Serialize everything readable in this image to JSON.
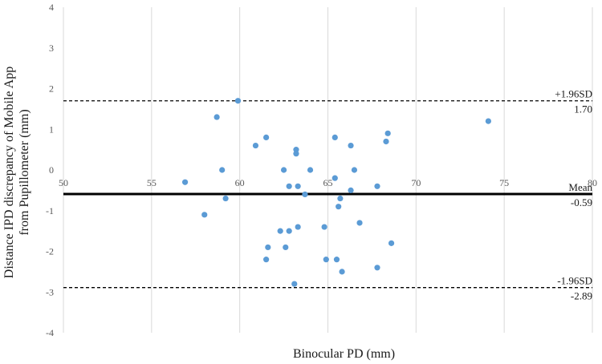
{
  "chart_data": {
    "type": "scatter",
    "title": "",
    "xlabel": "Binocular PD (mm)",
    "ylabel_lines": [
      "Distance IPD discrepancy  of Mobile App",
      "from Pupillometer (mm)"
    ],
    "xlim": [
      50,
      80
    ],
    "ylim": [
      -4,
      4
    ],
    "x_ticks": [
      50,
      55,
      60,
      65,
      70,
      75,
      80
    ],
    "y_ticks": [
      4,
      3,
      2,
      1,
      0,
      -1,
      -2,
      -3,
      -4
    ],
    "grid": "vertical",
    "point_color": "#5b9bd5",
    "series": [
      {
        "name": "Difference",
        "points": [
          {
            "x": 59.9,
            "y": 1.7
          },
          {
            "x": 58.7,
            "y": 1.3
          },
          {
            "x": 74.1,
            "y": 1.2
          },
          {
            "x": 68.4,
            "y": 0.9
          },
          {
            "x": 61.5,
            "y": 0.8
          },
          {
            "x": 65.4,
            "y": 0.8
          },
          {
            "x": 60.9,
            "y": 0.6
          },
          {
            "x": 66.3,
            "y": 0.6
          },
          {
            "x": 68.3,
            "y": 0.7
          },
          {
            "x": 63.2,
            "y": 0.5
          },
          {
            "x": 63.2,
            "y": 0.4
          },
          {
            "x": 59.0,
            "y": 0.0
          },
          {
            "x": 62.5,
            "y": 0.0
          },
          {
            "x": 64.0,
            "y": 0.0
          },
          {
            "x": 66.5,
            "y": 0.0
          },
          {
            "x": 65.4,
            "y": -0.2
          },
          {
            "x": 56.9,
            "y": -0.3
          },
          {
            "x": 62.8,
            "y": -0.4
          },
          {
            "x": 63.3,
            "y": -0.4
          },
          {
            "x": 67.8,
            "y": -0.4
          },
          {
            "x": 66.3,
            "y": -0.5
          },
          {
            "x": 63.7,
            "y": -0.6
          },
          {
            "x": 59.2,
            "y": -0.7
          },
          {
            "x": 65.7,
            "y": -0.7
          },
          {
            "x": 65.6,
            "y": -0.9
          },
          {
            "x": 58.0,
            "y": -1.1
          },
          {
            "x": 66.8,
            "y": -1.3
          },
          {
            "x": 62.3,
            "y": -1.5
          },
          {
            "x": 62.8,
            "y": -1.5
          },
          {
            "x": 63.3,
            "y": -1.4
          },
          {
            "x": 64.8,
            "y": -1.4
          },
          {
            "x": 61.6,
            "y": -1.9
          },
          {
            "x": 62.6,
            "y": -1.9
          },
          {
            "x": 68.6,
            "y": -1.8
          },
          {
            "x": 61.5,
            "y": -2.2
          },
          {
            "x": 64.9,
            "y": -2.2
          },
          {
            "x": 65.5,
            "y": -2.2
          },
          {
            "x": 67.8,
            "y": -2.4
          },
          {
            "x": 65.8,
            "y": -2.5
          },
          {
            "x": 63.1,
            "y": -2.8
          }
        ]
      }
    ],
    "reference_lines": [
      {
        "name": "upper-loa",
        "value": 1.7,
        "style": "dashed",
        "label": "+1.96SD",
        "value_label": "1.70"
      },
      {
        "name": "mean",
        "value": -0.59,
        "style": "solid",
        "label": "Mean",
        "value_label": "-0.59"
      },
      {
        "name": "lower-loa",
        "value": -2.89,
        "style": "dashed",
        "label": "-1.96SD",
        "value_label": "-2.89"
      }
    ]
  }
}
